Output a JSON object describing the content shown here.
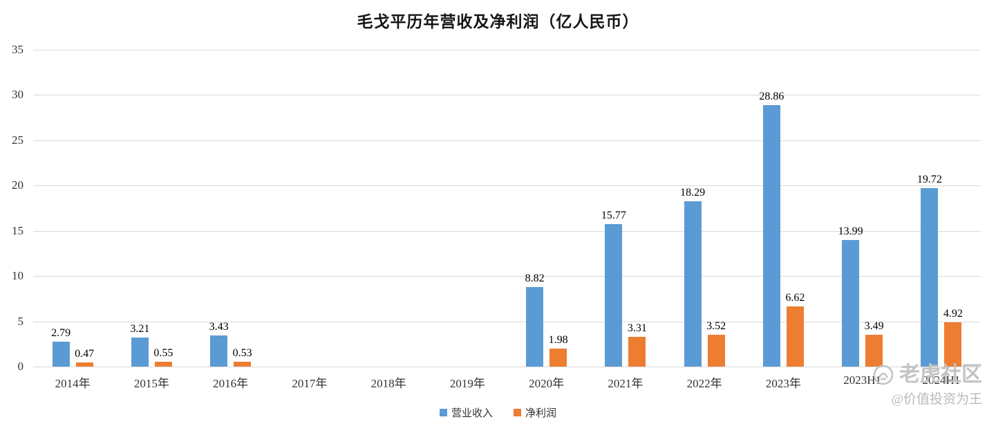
{
  "chart_data": {
    "type": "bar",
    "title": "毛戈平历年营收及净利润（亿人民币）",
    "categories": [
      "2014年",
      "2015年",
      "2016年",
      "2017年",
      "2018年",
      "2019年",
      "2020年",
      "2021年",
      "2022年",
      "2023年",
      "2023H1",
      "2024H1"
    ],
    "series": [
      {
        "name": "营业收入",
        "color": "#5b9bd5",
        "values": [
          2.79,
          3.21,
          3.43,
          null,
          null,
          null,
          8.82,
          15.77,
          18.29,
          28.86,
          13.99,
          19.72
        ]
      },
      {
        "name": "净利润",
        "color": "#ed7d31",
        "values": [
          0.47,
          0.55,
          0.53,
          null,
          null,
          null,
          1.98,
          3.31,
          3.52,
          6.62,
          3.49,
          4.92
        ]
      }
    ],
    "ylim": [
      0,
      35
    ],
    "yticks": [
      0,
      5,
      10,
      15,
      20,
      25,
      30,
      35
    ],
    "grid": true,
    "legend_position": "bottom",
    "colors": {
      "revenue": "#5b9bd5",
      "profit": "#ed7d31",
      "gridline": "#d9d9d9"
    }
  },
  "watermark": {
    "brand": "老虎社区",
    "author": "@价值投资为王"
  }
}
